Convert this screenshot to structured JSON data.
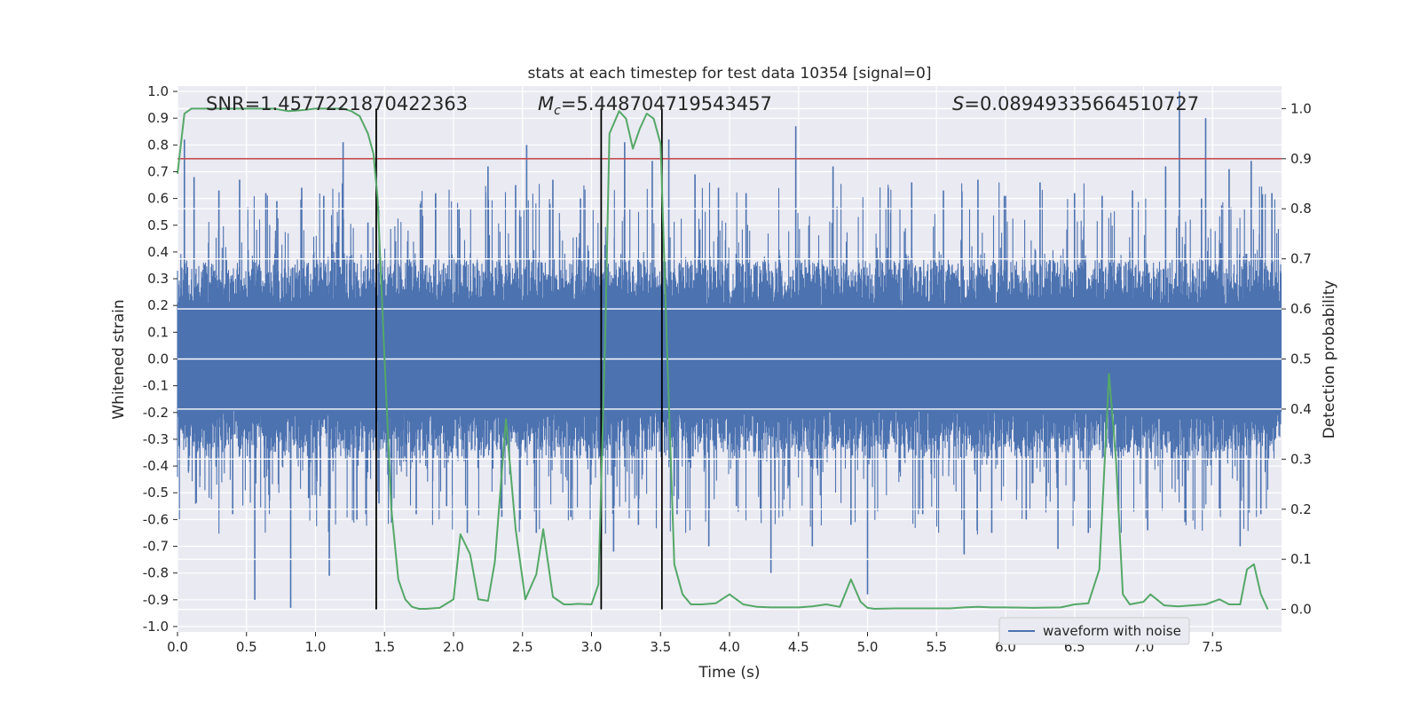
{
  "chart_data": {
    "type": "line",
    "title": "stats at each timestep for test data 10354 [signal=0]",
    "xlabel": "Time (s)",
    "ylabel": "Whitened strain",
    "y2label": "Detection probability",
    "xlim": [
      0.0,
      8.0
    ],
    "ylim": [
      -1.02,
      1.02
    ],
    "y2lim": [
      -0.045,
      1.045
    ],
    "x_ticks": [
      "0.0",
      "0.5",
      "1.0",
      "1.5",
      "2.0",
      "2.5",
      "3.0",
      "3.5",
      "4.0",
      "4.5",
      "5.0",
      "5.5",
      "6.0",
      "6.5",
      "7.0",
      "7.5"
    ],
    "y_ticks": [
      "1.0",
      "0.9",
      "0.8",
      "0.7",
      "0.6",
      "0.5",
      "0.4",
      "0.3",
      "0.2",
      "0.1",
      "0.0",
      "-0.1",
      "-0.2",
      "-0.3",
      "-0.4",
      "-0.5",
      "-0.6",
      "-0.7",
      "-0.8",
      "-0.9",
      "-1.0"
    ],
    "y2_ticks": [
      "1.0",
      "0.9",
      "0.8",
      "0.7",
      "0.6",
      "0.5",
      "0.4",
      "0.3",
      "0.2",
      "0.1",
      "0.0"
    ],
    "annotations": {
      "snr": "SNR=1.4577221870422363",
      "mc_symbol": "M",
      "mc_sub": "c",
      "mc_value": "=5.448704719543457",
      "s_symbol": "S",
      "s_value": "=0.08949335664510727"
    },
    "grid": true,
    "legend": {
      "position": "bottom-right",
      "entries": [
        "waveform with noise"
      ]
    },
    "colors": {
      "waveform": "#4c72b0",
      "probability": "#55a868",
      "threshold": "#c44e52",
      "marker": "#000000",
      "plot_bg": "#eaeaf2",
      "grid": "#ffffff"
    },
    "threshold_y2": 0.9,
    "vertical_markers_x": [
      1.44,
      3.07,
      3.51
    ],
    "series": [
      {
        "name": "waveform with noise",
        "axis": "left",
        "style": "dense-noise",
        "core_amplitude": [
          -0.35,
          0.36
        ],
        "spikes": [
          [
            0.05,
            0.82
          ],
          [
            0.08,
            -0.42
          ],
          [
            0.12,
            0.68
          ],
          [
            0.3,
            0.63
          ],
          [
            0.4,
            -0.58
          ],
          [
            0.45,
            0.67
          ],
          [
            0.56,
            -0.9
          ],
          [
            0.64,
            0.62
          ],
          [
            0.72,
            0.59
          ],
          [
            0.82,
            -0.93
          ],
          [
            0.9,
            0.64
          ],
          [
            0.95,
            -0.52
          ],
          [
            1.06,
            0.61
          ],
          [
            1.1,
            -0.81
          ],
          [
            1.2,
            0.81
          ],
          [
            1.3,
            -0.6
          ],
          [
            1.38,
            0.51
          ],
          [
            1.46,
            -0.54
          ],
          [
            1.58,
            0.44
          ],
          [
            1.73,
            -0.58
          ],
          [
            1.87,
            0.62
          ],
          [
            1.95,
            -0.55
          ],
          [
            2.04,
            0.56
          ],
          [
            2.1,
            -0.65
          ],
          [
            2.25,
            0.72
          ],
          [
            2.35,
            -0.59
          ],
          [
            2.45,
            0.65
          ],
          [
            2.53,
            0.8
          ],
          [
            2.6,
            -0.65
          ],
          [
            2.72,
            0.67
          ],
          [
            2.85,
            -0.59
          ],
          [
            2.92,
            0.6
          ],
          [
            3.07,
            -0.66
          ],
          [
            3.16,
            -0.72
          ],
          [
            3.24,
            0.81
          ],
          [
            3.34,
            -0.62
          ],
          [
            3.44,
            0.74
          ],
          [
            3.56,
            0.82
          ],
          [
            3.62,
            -0.58
          ],
          [
            3.75,
            0.69
          ],
          [
            3.85,
            -0.7
          ],
          [
            3.92,
            0.64
          ],
          [
            4.05,
            -0.55
          ],
          [
            4.12,
            0.62
          ],
          [
            4.3,
            -0.8
          ],
          [
            4.48,
            0.87
          ],
          [
            4.6,
            -0.7
          ],
          [
            4.75,
            0.72
          ],
          [
            4.88,
            -0.62
          ],
          [
            5.0,
            -0.88
          ],
          [
            5.15,
            0.64
          ],
          [
            5.32,
            0.66
          ],
          [
            5.4,
            -0.58
          ],
          [
            5.55,
            0.63
          ],
          [
            5.7,
            -0.73
          ],
          [
            5.8,
            0.67
          ],
          [
            5.9,
            -0.65
          ],
          [
            6.0,
            0.61
          ],
          [
            6.15,
            -0.6
          ],
          [
            6.25,
            0.66
          ],
          [
            6.38,
            -0.71
          ],
          [
            6.5,
            0.62
          ],
          [
            6.6,
            -0.65
          ],
          [
            6.7,
            0.61
          ],
          [
            6.82,
            -0.57
          ],
          [
            6.92,
            0.63
          ],
          [
            7.03,
            -0.64
          ],
          [
            7.16,
            0.72
          ],
          [
            7.26,
            1.0
          ],
          [
            7.3,
            -0.61
          ],
          [
            7.42,
            0.6
          ],
          [
            7.45,
            0.9
          ],
          [
            7.55,
            -0.56
          ],
          [
            7.62,
            0.71
          ],
          [
            7.7,
            -0.7
          ],
          [
            7.78,
            0.74
          ],
          [
            7.85,
            -0.58
          ],
          [
            7.93,
            0.62
          ]
        ]
      },
      {
        "name": "",
        "axis": "right",
        "x": [
          0.0,
          0.05,
          0.1,
          0.2,
          0.3,
          0.4,
          0.5,
          0.6,
          0.7,
          0.8,
          0.9,
          1.0,
          1.1,
          1.2,
          1.26,
          1.32,
          1.38,
          1.42,
          1.45,
          1.5,
          1.55,
          1.6,
          1.65,
          1.7,
          1.75,
          1.8,
          1.9,
          2.0,
          2.05,
          2.12,
          2.18,
          2.25,
          2.3,
          2.38,
          2.45,
          2.52,
          2.6,
          2.65,
          2.72,
          2.8,
          2.85,
          2.9,
          3.0,
          3.05,
          3.1,
          3.13,
          3.2,
          3.25,
          3.3,
          3.35,
          3.4,
          3.45,
          3.5,
          3.55,
          3.6,
          3.66,
          3.72,
          3.8,
          3.9,
          4.0,
          4.1,
          4.2,
          4.3,
          4.4,
          4.5,
          4.6,
          4.7,
          4.8,
          4.88,
          4.95,
          5.0,
          5.05,
          5.2,
          5.4,
          5.6,
          5.7,
          5.8,
          5.9,
          6.0,
          6.2,
          6.4,
          6.5,
          6.6,
          6.68,
          6.75,
          6.8,
          6.85,
          6.9,
          7.0,
          7.05,
          7.15,
          7.25,
          7.35,
          7.45,
          7.55,
          7.62,
          7.7,
          7.75,
          7.8,
          7.85,
          7.9
        ],
        "values": [
          0.87,
          0.99,
          1.0,
          1.0,
          1.0,
          1.0,
          1.0,
          1.0,
          1.0,
          0.995,
          0.997,
          1.0,
          1.0,
          1.0,
          0.995,
          0.985,
          0.95,
          0.91,
          0.82,
          0.5,
          0.2,
          0.06,
          0.02,
          0.005,
          0.001,
          0.001,
          0.003,
          0.02,
          0.15,
          0.11,
          0.02,
          0.017,
          0.095,
          0.38,
          0.16,
          0.02,
          0.07,
          0.16,
          0.025,
          0.01,
          0.01,
          0.011,
          0.01,
          0.05,
          0.55,
          0.95,
          0.995,
          0.98,
          0.92,
          0.96,
          0.99,
          0.98,
          0.93,
          0.5,
          0.09,
          0.03,
          0.01,
          0.01,
          0.012,
          0.03,
          0.01,
          0.005,
          0.004,
          0.004,
          0.004,
          0.006,
          0.01,
          0.005,
          0.06,
          0.015,
          0.003,
          0.001,
          0.002,
          0.002,
          0.002,
          0.004,
          0.005,
          0.004,
          0.004,
          0.003,
          0.004,
          0.01,
          0.012,
          0.08,
          0.47,
          0.3,
          0.03,
          0.01,
          0.015,
          0.03,
          0.008,
          0.006,
          0.008,
          0.01,
          0.02,
          0.01,
          0.01,
          0.08,
          0.09,
          0.03,
          0.0
        ]
      }
    ]
  }
}
